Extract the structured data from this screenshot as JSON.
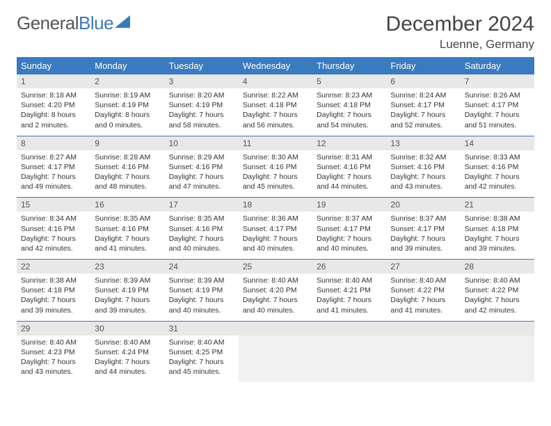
{
  "logo": {
    "part1": "General",
    "part2": "Blue"
  },
  "title": "December 2024",
  "location": "Luenne, Germany",
  "weekdays": [
    "Sunday",
    "Monday",
    "Tuesday",
    "Wednesday",
    "Thursday",
    "Friday",
    "Saturday"
  ],
  "header_bg": "#3a7bbf",
  "header_fg": "#ffffff",
  "daynum_bg": "#e8e8e8",
  "rule_color": "#3a7bbf",
  "weeks": [
    {
      "nums": [
        "1",
        "2",
        "3",
        "4",
        "5",
        "6",
        "7"
      ],
      "cells": [
        {
          "sunrise": "Sunrise: 8:18 AM",
          "sunset": "Sunset: 4:20 PM",
          "daylight": "Daylight: 8 hours and 2 minutes."
        },
        {
          "sunrise": "Sunrise: 8:19 AM",
          "sunset": "Sunset: 4:19 PM",
          "daylight": "Daylight: 8 hours and 0 minutes."
        },
        {
          "sunrise": "Sunrise: 8:20 AM",
          "sunset": "Sunset: 4:19 PM",
          "daylight": "Daylight: 7 hours and 58 minutes."
        },
        {
          "sunrise": "Sunrise: 8:22 AM",
          "sunset": "Sunset: 4:18 PM",
          "daylight": "Daylight: 7 hours and 56 minutes."
        },
        {
          "sunrise": "Sunrise: 8:23 AM",
          "sunset": "Sunset: 4:18 PM",
          "daylight": "Daylight: 7 hours and 54 minutes."
        },
        {
          "sunrise": "Sunrise: 8:24 AM",
          "sunset": "Sunset: 4:17 PM",
          "daylight": "Daylight: 7 hours and 52 minutes."
        },
        {
          "sunrise": "Sunrise: 8:26 AM",
          "sunset": "Sunset: 4:17 PM",
          "daylight": "Daylight: 7 hours and 51 minutes."
        }
      ]
    },
    {
      "nums": [
        "8",
        "9",
        "10",
        "11",
        "12",
        "13",
        "14"
      ],
      "cells": [
        {
          "sunrise": "Sunrise: 8:27 AM",
          "sunset": "Sunset: 4:17 PM",
          "daylight": "Daylight: 7 hours and 49 minutes."
        },
        {
          "sunrise": "Sunrise: 8:28 AM",
          "sunset": "Sunset: 4:16 PM",
          "daylight": "Daylight: 7 hours and 48 minutes."
        },
        {
          "sunrise": "Sunrise: 8:29 AM",
          "sunset": "Sunset: 4:16 PM",
          "daylight": "Daylight: 7 hours and 47 minutes."
        },
        {
          "sunrise": "Sunrise: 8:30 AM",
          "sunset": "Sunset: 4:16 PM",
          "daylight": "Daylight: 7 hours and 45 minutes."
        },
        {
          "sunrise": "Sunrise: 8:31 AM",
          "sunset": "Sunset: 4:16 PM",
          "daylight": "Daylight: 7 hours and 44 minutes."
        },
        {
          "sunrise": "Sunrise: 8:32 AM",
          "sunset": "Sunset: 4:16 PM",
          "daylight": "Daylight: 7 hours and 43 minutes."
        },
        {
          "sunrise": "Sunrise: 8:33 AM",
          "sunset": "Sunset: 4:16 PM",
          "daylight": "Daylight: 7 hours and 42 minutes."
        }
      ]
    },
    {
      "nums": [
        "15",
        "16",
        "17",
        "18",
        "19",
        "20",
        "21"
      ],
      "cells": [
        {
          "sunrise": "Sunrise: 8:34 AM",
          "sunset": "Sunset: 4:16 PM",
          "daylight": "Daylight: 7 hours and 42 minutes."
        },
        {
          "sunrise": "Sunrise: 8:35 AM",
          "sunset": "Sunset: 4:16 PM",
          "daylight": "Daylight: 7 hours and 41 minutes."
        },
        {
          "sunrise": "Sunrise: 8:35 AM",
          "sunset": "Sunset: 4:16 PM",
          "daylight": "Daylight: 7 hours and 40 minutes."
        },
        {
          "sunrise": "Sunrise: 8:36 AM",
          "sunset": "Sunset: 4:17 PM",
          "daylight": "Daylight: 7 hours and 40 minutes."
        },
        {
          "sunrise": "Sunrise: 8:37 AM",
          "sunset": "Sunset: 4:17 PM",
          "daylight": "Daylight: 7 hours and 40 minutes."
        },
        {
          "sunrise": "Sunrise: 8:37 AM",
          "sunset": "Sunset: 4:17 PM",
          "daylight": "Daylight: 7 hours and 39 minutes."
        },
        {
          "sunrise": "Sunrise: 8:38 AM",
          "sunset": "Sunset: 4:18 PM",
          "daylight": "Daylight: 7 hours and 39 minutes."
        }
      ]
    },
    {
      "nums": [
        "22",
        "23",
        "24",
        "25",
        "26",
        "27",
        "28"
      ],
      "cells": [
        {
          "sunrise": "Sunrise: 8:38 AM",
          "sunset": "Sunset: 4:18 PM",
          "daylight": "Daylight: 7 hours and 39 minutes."
        },
        {
          "sunrise": "Sunrise: 8:39 AM",
          "sunset": "Sunset: 4:19 PM",
          "daylight": "Daylight: 7 hours and 39 minutes."
        },
        {
          "sunrise": "Sunrise: 8:39 AM",
          "sunset": "Sunset: 4:19 PM",
          "daylight": "Daylight: 7 hours and 40 minutes."
        },
        {
          "sunrise": "Sunrise: 8:40 AM",
          "sunset": "Sunset: 4:20 PM",
          "daylight": "Daylight: 7 hours and 40 minutes."
        },
        {
          "sunrise": "Sunrise: 8:40 AM",
          "sunset": "Sunset: 4:21 PM",
          "daylight": "Daylight: 7 hours and 41 minutes."
        },
        {
          "sunrise": "Sunrise: 8:40 AM",
          "sunset": "Sunset: 4:22 PM",
          "daylight": "Daylight: 7 hours and 41 minutes."
        },
        {
          "sunrise": "Sunrise: 8:40 AM",
          "sunset": "Sunset: 4:22 PM",
          "daylight": "Daylight: 7 hours and 42 minutes."
        }
      ]
    },
    {
      "nums": [
        "29",
        "30",
        "31",
        "",
        "",
        "",
        ""
      ],
      "cells": [
        {
          "sunrise": "Sunrise: 8:40 AM",
          "sunset": "Sunset: 4:23 PM",
          "daylight": "Daylight: 7 hours and 43 minutes."
        },
        {
          "sunrise": "Sunrise: 8:40 AM",
          "sunset": "Sunset: 4:24 PM",
          "daylight": "Daylight: 7 hours and 44 minutes."
        },
        {
          "sunrise": "Sunrise: 8:40 AM",
          "sunset": "Sunset: 4:25 PM",
          "daylight": "Daylight: 7 hours and 45 minutes."
        },
        null,
        null,
        null,
        null
      ]
    }
  ]
}
